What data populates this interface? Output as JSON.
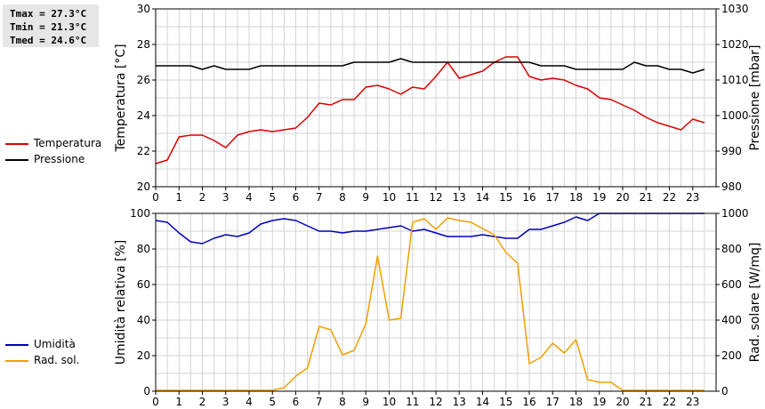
{
  "stats": {
    "tmax": "Tmax = 27.3°C",
    "tmin": "Tmin = 21.3°C",
    "tmed": "Tmed = 24.6°C"
  },
  "legend_top": [
    {
      "label": "Temperatura",
      "color": "#dd0000"
    },
    {
      "label": "Pressione",
      "color": "#000000"
    }
  ],
  "legend_bottom": [
    {
      "label": "Umidità",
      "color": "#0000bb"
    },
    {
      "label": "Rad. sol.",
      "color": "#f0a000"
    }
  ],
  "chart_data": [
    {
      "type": "line",
      "ylabel_left": "Temperatura [°C]",
      "ylabel_right": "Pressione [mbar]",
      "xlim": [
        0,
        24
      ],
      "x_ticks": [
        0,
        1,
        2,
        3,
        4,
        5,
        6,
        7,
        8,
        9,
        10,
        11,
        12,
        13,
        14,
        15,
        16,
        17,
        18,
        19,
        20,
        21,
        22,
        23
      ],
      "ylim_left": [
        20,
        30
      ],
      "y_ticks_left": [
        20,
        22,
        24,
        26,
        28,
        30
      ],
      "ylim_right": [
        980,
        1030
      ],
      "y_ticks_right": [
        980,
        990,
        1000,
        1010,
        1020,
        1030
      ],
      "grid": true,
      "series": [
        {
          "name": "Temperatura",
          "axis": "left",
          "color": "#dd0000",
          "x": [
            0,
            0.5,
            1,
            1.5,
            2,
            2.5,
            3,
            3.5,
            4,
            4.5,
            5,
            5.5,
            6,
            6.5,
            7,
            7.5,
            8,
            8.5,
            9,
            9.5,
            10,
            10.5,
            11,
            11.5,
            12,
            12.5,
            13,
            13.5,
            14,
            14.5,
            15,
            15.5,
            16,
            16.5,
            17,
            17.5,
            18,
            18.5,
            19,
            19.5,
            20,
            20.5,
            21,
            21.5,
            22,
            22.5,
            23,
            23.5
          ],
          "y": [
            21.3,
            21.5,
            22.8,
            22.9,
            22.9,
            22.6,
            22.2,
            22.9,
            23.1,
            23.2,
            23.1,
            23.2,
            23.3,
            23.9,
            24.7,
            24.6,
            24.9,
            24.9,
            25.6,
            25.7,
            25.5,
            25.2,
            25.6,
            25.5,
            26.2,
            27.0,
            26.1,
            26.3,
            26.5,
            27.0,
            27.3,
            27.3,
            26.2,
            26.0,
            26.1,
            26.0,
            25.7,
            25.5,
            25.0,
            24.9,
            24.6,
            24.3,
            23.9,
            23.6,
            23.4,
            23.2,
            23.8,
            23.6
          ]
        },
        {
          "name": "Pressione",
          "axis": "right",
          "color": "#000000",
          "x": [
            0,
            0.5,
            1,
            1.5,
            2,
            2.5,
            3,
            3.5,
            4,
            4.5,
            5,
            5.5,
            6,
            6.5,
            7,
            7.5,
            8,
            8.5,
            9,
            9.5,
            10,
            10.5,
            11,
            11.5,
            12,
            12.5,
            13,
            13.5,
            14,
            14.5,
            15,
            15.5,
            16,
            16.5,
            17,
            17.5,
            18,
            18.5,
            19,
            19.5,
            20,
            20.5,
            21,
            21.5,
            22,
            22.5,
            23,
            23.5
          ],
          "y": [
            1014,
            1014,
            1014,
            1014,
            1013,
            1014,
            1013,
            1013,
            1013,
            1014,
            1014,
            1014,
            1014,
            1014,
            1014,
            1014,
            1014,
            1015,
            1015,
            1015,
            1015,
            1016,
            1015,
            1015,
            1015,
            1015,
            1015,
            1015,
            1015,
            1015,
            1015,
            1015,
            1015,
            1014,
            1014,
            1014,
            1013,
            1013,
            1013,
            1013,
            1013,
            1015,
            1014,
            1014,
            1013,
            1013,
            1012,
            1013
          ]
        }
      ]
    },
    {
      "type": "line",
      "ylabel_left": "Umidità relativa [%]",
      "ylabel_right": "Rad. solare [W/mq]",
      "xlim": [
        0,
        24
      ],
      "x_ticks": [
        0,
        1,
        2,
        3,
        4,
        5,
        6,
        7,
        8,
        9,
        10,
        11,
        12,
        13,
        14,
        15,
        16,
        17,
        18,
        19,
        20,
        21,
        22,
        23
      ],
      "x_tick_labels": [
        "0",
        "1",
        "2",
        "3",
        "4",
        "5",
        "6",
        "7",
        "8",
        "9",
        "10",
        "11",
        "12",
        "13",
        "14",
        "15",
        "16",
        "17",
        "18",
        "19",
        "20",
        "21",
        "22",
        "23"
      ],
      "ylim_left": [
        0,
        100
      ],
      "y_ticks_left": [
        0,
        20,
        40,
        60,
        80,
        100
      ],
      "ylim_right": [
        0,
        1000
      ],
      "y_ticks_right": [
        0,
        200,
        400,
        600,
        800,
        1000
      ],
      "grid": true,
      "series": [
        {
          "name": "Umidità",
          "axis": "left",
          "color": "#0000bb",
          "x": [
            0,
            0.5,
            1,
            1.5,
            2,
            2.5,
            3,
            3.5,
            4,
            4.5,
            5,
            5.5,
            6,
            6.5,
            7,
            7.5,
            8,
            8.5,
            9,
            9.5,
            10,
            10.5,
            11,
            11.5,
            12,
            12.5,
            13,
            13.5,
            14,
            14.5,
            15,
            15.5,
            16,
            16.5,
            17,
            17.5,
            18,
            18.5,
            19,
            19.5,
            20,
            20.5,
            21,
            21.5,
            22,
            22.5,
            23,
            23.5
          ],
          "y": [
            96,
            95,
            89,
            84,
            83,
            86,
            88,
            87,
            89,
            94,
            96,
            97,
            96,
            93,
            90,
            90,
            89,
            90,
            90,
            91,
            92,
            93,
            90,
            91,
            89,
            87,
            87,
            87,
            88,
            87,
            86,
            86,
            91,
            91,
            93,
            95,
            98,
            96,
            100,
            100,
            100,
            100,
            100,
            100,
            100,
            100,
            100,
            100
          ]
        },
        {
          "name": "Rad. sol.",
          "axis": "right",
          "color": "#f0a000",
          "x": [
            0,
            0.5,
            1,
            1.5,
            2,
            2.5,
            3,
            3.5,
            4,
            4.5,
            5,
            5.5,
            6,
            6.5,
            7,
            7.5,
            8,
            8.5,
            9,
            9.5,
            10,
            10.5,
            11,
            11.5,
            12,
            12.5,
            13,
            13.5,
            14,
            14.5,
            15,
            15.5,
            16,
            16.5,
            17,
            17.5,
            18,
            18.5,
            19,
            19.5,
            20,
            20.5,
            21,
            21.5,
            22,
            22.5,
            23,
            23.5
          ],
          "y": [
            5,
            5,
            5,
            5,
            5,
            5,
            5,
            5,
            5,
            5,
            5,
            20,
            85,
            130,
            365,
            345,
            205,
            230,
            380,
            760,
            400,
            410,
            950,
            970,
            910,
            975,
            960,
            950,
            915,
            880,
            780,
            720,
            155,
            190,
            270,
            215,
            290,
            65,
            50,
            50,
            5,
            5,
            5,
            5,
            5,
            5,
            5,
            5
          ]
        }
      ]
    }
  ]
}
